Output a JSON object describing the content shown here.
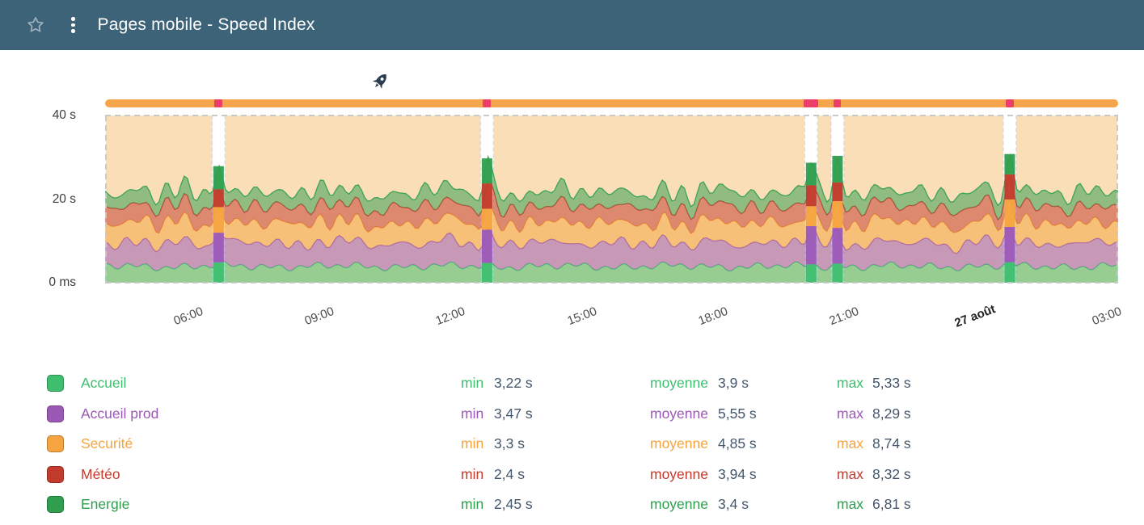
{
  "header": {
    "title": "Pages mobile - Speed Index",
    "icons": {
      "favorite": "star-outline",
      "menu": "kebab-dots"
    }
  },
  "colors": {
    "header_bg": "#3d6378",
    "value_text": "#44566b",
    "band": "#f7d6a6",
    "timeline": "#f7a54c",
    "timeline_marker": "#eb3e68"
  },
  "chart_data": {
    "type": "area",
    "stacked": true,
    "title": "Pages mobile - Speed Index",
    "xlabel": "",
    "ylabel": "",
    "ylim": [
      0,
      40
    ],
    "y_ticks": [
      {
        "label": "40 s",
        "value": 40
      },
      {
        "label": "20 s",
        "value": 20
      },
      {
        "label": "0 ms",
        "value": 0
      }
    ],
    "x_ticks": [
      {
        "label": "06:00",
        "f": 0.082,
        "bold": false
      },
      {
        "label": "09:00",
        "f": 0.2115,
        "bold": false
      },
      {
        "label": "12:00",
        "f": 0.341,
        "bold": false
      },
      {
        "label": "15:00",
        "f": 0.4705,
        "bold": false
      },
      {
        "label": "18:00",
        "f": 0.6,
        "bold": false
      },
      {
        "label": "21:00",
        "f": 0.7295,
        "bold": false
      },
      {
        "label": "27 août",
        "f": 0.859,
        "bold": true
      },
      {
        "label": "03:00",
        "f": 0.9885,
        "bold": false
      }
    ],
    "band": {
      "color": "#f7d6a6",
      "from": 0,
      "to": 40
    },
    "timeline_bar": {
      "color": "#f7a54c",
      "marker_color": "#eb3e68",
      "markers": [
        {
          "f": 0.112,
          "w": 10
        },
        {
          "f": 0.377,
          "w": 10
        },
        {
          "f": 0.697,
          "w": 18
        },
        {
          "f": 0.723,
          "w": 9
        },
        {
          "f": 0.893,
          "w": 10
        }
      ]
    },
    "gaps": [
      0.112,
      0.377,
      0.697,
      0.723,
      0.893
    ],
    "annotations": [
      {
        "name": "rocket-deploy",
        "f": 0.2713
      }
    ],
    "series": [
      {
        "name": "Accueil",
        "color": "#3fbe70",
        "min": 3.22,
        "avg": 3.9,
        "max": 5.33
      },
      {
        "name": "Accueil prod",
        "color": "#9b59b6",
        "min": 3.47,
        "avg": 5.55,
        "max": 8.29
      },
      {
        "name": "Securité",
        "color": "#f5a43f",
        "min": 3.3,
        "avg": 4.85,
        "max": 8.74
      },
      {
        "name": "Météo",
        "color": "#c23b2c",
        "min": 2.4,
        "avg": 3.94,
        "max": 8.32
      },
      {
        "name": "Energie",
        "color": "#2f9e4e",
        "min": 2.45,
        "avg": 3.4,
        "max": 6.81
      }
    ]
  },
  "legend": {
    "min_label": "min",
    "avg_label": "moyenne",
    "max_label": "max",
    "rows": [
      {
        "name": "Accueil",
        "color": "#3fbe70",
        "min": "3,22 s",
        "avg": "3,9 s",
        "max": "5,33 s"
      },
      {
        "name": "Accueil prod",
        "color": "#9b59b6",
        "min": "3,47 s",
        "avg": "5,55 s",
        "max": "8,29 s"
      },
      {
        "name": "Securité",
        "color": "#f5a43f",
        "min": "3,3 s",
        "avg": "4,85 s",
        "max": "8,74 s"
      },
      {
        "name": "Météo",
        "color": "#c23b2c",
        "min": "2,4 s",
        "avg": "3,94 s",
        "max": "8,32 s"
      },
      {
        "name": "Energie",
        "color": "#2f9e4e",
        "min": "2,45 s",
        "avg": "3,4 s",
        "max": "6,81 s"
      }
    ]
  }
}
